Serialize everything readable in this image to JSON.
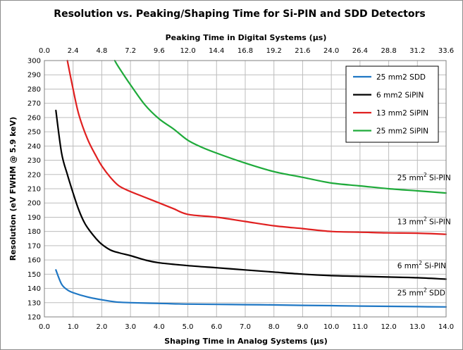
{
  "chart_data": {
    "type": "line",
    "title": "Resolution vs. Peaking/Shaping Time for Si-PIN and SDD Detectors",
    "xlabel": "Shaping Time in Analog Systems (µs)",
    "x2label": "Peaking Time in Digital Systems (µs)",
    "ylabel": "Resolution (eV FWHM @ 5.9 keV)",
    "xlim": [
      0,
      14
    ],
    "x2lim": [
      0,
      33.6
    ],
    "ylim": [
      120,
      300
    ],
    "xticks": [
      "0.0",
      "1.0",
      "2.0",
      "3.0",
      "4.0",
      "5.0",
      "6.0",
      "7.0",
      "8.0",
      "9.0",
      "10.0",
      "11.0",
      "12.0",
      "13.0",
      "14.0"
    ],
    "x2ticks": [
      "0.0",
      "2.4",
      "4.8",
      "7.2",
      "9.6",
      "12.0",
      "14.4",
      "16.8",
      "19.2",
      "21.6",
      "24.0",
      "26.4",
      "28.8",
      "31.2",
      "33.6"
    ],
    "yticks": [
      "120",
      "130",
      "140",
      "150",
      "160",
      "170",
      "180",
      "190",
      "200",
      "210",
      "220",
      "230",
      "240",
      "250",
      "260",
      "270",
      "280",
      "290",
      "300"
    ],
    "grid": true,
    "legend_position": "top-right",
    "series": [
      {
        "name": "25 mm2 SDD",
        "color": "#1f77c4",
        "x": [
          0.4,
          0.6,
          0.8,
          1.0,
          1.5,
          2.0,
          2.5,
          3.0,
          4.0,
          5.0,
          6.0,
          7.0,
          8.0,
          9.0,
          10.0,
          11.0,
          12.0,
          13.0,
          14.0
        ],
        "y": [
          153,
          143,
          139,
          137,
          134,
          132,
          130.5,
          130,
          129.5,
          129,
          128.8,
          128.6,
          128.4,
          128.1,
          127.9,
          127.6,
          127.4,
          127.2,
          127
        ]
      },
      {
        "name": "6 mm2 SiPIN",
        "color": "#000000",
        "x": [
          0.4,
          0.6,
          0.8,
          1.0,
          1.2,
          1.4,
          1.6,
          1.8,
          2.0,
          2.3,
          2.6,
          3.0,
          3.5,
          4.0,
          5.0,
          6.0,
          7.0,
          8.0,
          9.0,
          10.0,
          11.0,
          12.0,
          13.0,
          14.0
        ],
        "y": [
          265,
          235,
          220,
          207,
          195,
          186,
          180,
          175,
          171,
          167,
          165,
          163,
          160,
          158,
          156,
          154.5,
          153,
          151.5,
          150,
          149,
          148.5,
          148,
          147.5,
          146.5
        ]
      },
      {
        "name": "13 mm2 SiPIN",
        "color": "#e02020",
        "x": [
          0.8,
          1.0,
          1.2,
          1.5,
          1.8,
          2.0,
          2.3,
          2.6,
          3.0,
          3.5,
          4.0,
          4.5,
          5.0,
          6.0,
          7.0,
          8.0,
          9.0,
          10.0,
          11.0,
          12.0,
          13.0,
          14.0
        ],
        "y": [
          300,
          280,
          262,
          245,
          233,
          226,
          218,
          212,
          208,
          204,
          200,
          196,
          192,
          190,
          187,
          184,
          182,
          180,
          179.5,
          179,
          178.8,
          178
        ]
      },
      {
        "name": "25 mm2 SiPIN",
        "color": "#1eaa3a",
        "x": [
          2.45,
          2.6,
          3.0,
          3.5,
          4.0,
          4.5,
          5.0,
          5.5,
          6.0,
          7.0,
          8.0,
          9.0,
          10.0,
          11.0,
          12.0,
          13.0,
          14.0
        ],
        "y": [
          300,
          295,
          283,
          269,
          259,
          252,
          244,
          239,
          235,
          228,
          222,
          218,
          214,
          212,
          210,
          208.5,
          207
        ]
      }
    ],
    "annotations": [
      {
        "label": "25 mm² Si-PIN",
        "x": 12.3,
        "y": 216
      },
      {
        "label": "13 mm² Si-PIN",
        "x": 12.3,
        "y": 185
      },
      {
        "label": "6 mm² Si-PIN",
        "x": 12.3,
        "y": 154
      },
      {
        "label": "25 mm² SDD",
        "x": 12.3,
        "y": 135
      }
    ]
  }
}
